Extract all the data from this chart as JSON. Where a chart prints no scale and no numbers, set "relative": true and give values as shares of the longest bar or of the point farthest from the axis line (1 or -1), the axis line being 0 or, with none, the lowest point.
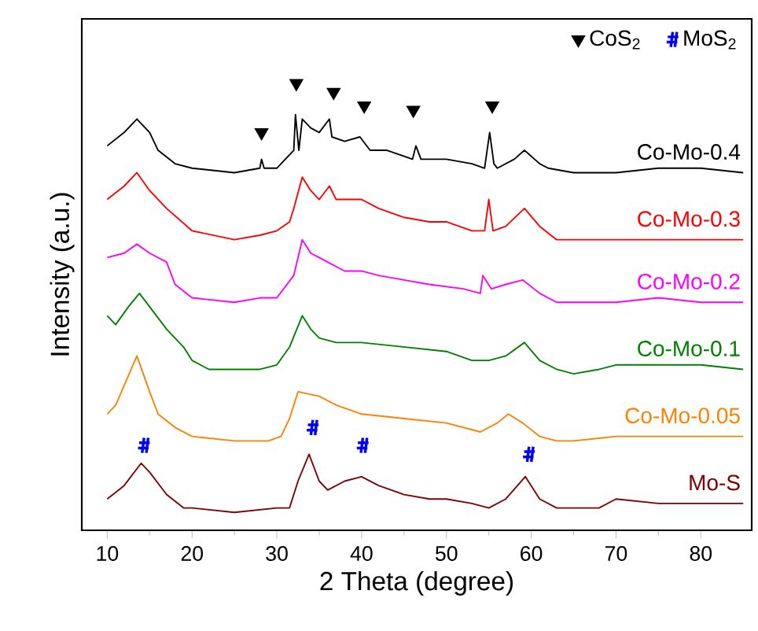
{
  "chart_data": {
    "type": "line",
    "relative": true,
    "xlabel": "2 Theta (degree)",
    "ylabel": "Intensity (a.u.)",
    "xlim": [
      7,
      86
    ],
    "xticks": [
      10,
      20,
      30,
      40,
      50,
      60,
      70,
      80
    ],
    "legend": "top right",
    "series": [
      {
        "name": "Co-Mo-0.4",
        "color": "#000000",
        "x": [
          10,
          12,
          13.5,
          15,
          16,
          18,
          20,
          25,
          28,
          28.2,
          28.5,
          30,
          31,
          32,
          32.2,
          32.6,
          33,
          34,
          35,
          36.2,
          36.5,
          38,
          39.8,
          41,
          43,
          46,
          46.4,
          47,
          50,
          53,
          54.5,
          55.1,
          55.6,
          56,
          58,
          59.2,
          61,
          62,
          65,
          70,
          75,
          80,
          85
        ],
        "values": [
          0.86,
          0.89,
          0.92,
          0.89,
          0.85,
          0.82,
          0.81,
          0.8,
          0.81,
          0.83,
          0.81,
          0.81,
          0.83,
          0.85,
          0.93,
          0.85,
          0.92,
          0.9,
          0.89,
          0.92,
          0.88,
          0.87,
          0.88,
          0.85,
          0.85,
          0.83,
          0.86,
          0.83,
          0.83,
          0.82,
          0.81,
          0.89,
          0.82,
          0.81,
          0.83,
          0.85,
          0.82,
          0.81,
          0.8,
          0.8,
          0.81,
          0.81,
          0.8
        ]
      },
      {
        "name": "Co-Mo-0.3",
        "color": "#ff0000",
        "x": [
          10,
          12,
          13.5,
          15,
          17,
          20,
          25,
          28,
          30,
          31.5,
          32,
          33,
          34,
          35,
          36.2,
          37,
          40,
          42,
          45,
          48,
          50,
          53,
          54.5,
          55,
          55.5,
          57,
          59.2,
          61,
          63,
          65,
          70,
          80,
          85
        ],
        "values": [
          0.74,
          0.77,
          0.8,
          0.76,
          0.72,
          0.67,
          0.65,
          0.66,
          0.67,
          0.69,
          0.72,
          0.79,
          0.76,
          0.74,
          0.77,
          0.74,
          0.74,
          0.72,
          0.7,
          0.69,
          0.69,
          0.67,
          0.67,
          0.74,
          0.67,
          0.68,
          0.72,
          0.68,
          0.65,
          0.65,
          0.65,
          0.65,
          0.65
        ]
      },
      {
        "name": "Co-Mo-0.2",
        "color": "#ff00ff",
        "x": [
          10,
          12,
          13.5,
          15,
          17,
          18,
          20,
          25,
          28,
          30,
          32,
          33,
          34,
          35,
          36,
          38,
          40,
          42,
          45,
          48,
          52,
          54,
          54.3,
          55.3,
          57,
          59,
          61,
          63,
          65,
          70,
          75,
          80,
          85
        ],
        "values": [
          0.61,
          0.62,
          0.64,
          0.62,
          0.6,
          0.55,
          0.52,
          0.51,
          0.52,
          0.52,
          0.57,
          0.65,
          0.62,
          0.61,
          0.6,
          0.58,
          0.58,
          0.57,
          0.56,
          0.55,
          0.54,
          0.53,
          0.57,
          0.54,
          0.55,
          0.56,
          0.53,
          0.51,
          0.51,
          0.51,
          0.52,
          0.51,
          0.51
        ]
      },
      {
        "name": "Co-Mo-0.1",
        "color": "#008000",
        "x": [
          10,
          11,
          12.5,
          13.8,
          15,
          17,
          19,
          20,
          22,
          25,
          28,
          30,
          31.5,
          33,
          34,
          35,
          37,
          40,
          45,
          50,
          53,
          55,
          57,
          59.2,
          61,
          63,
          65,
          68,
          70,
          75,
          80,
          85
        ],
        "values": [
          0.48,
          0.46,
          0.5,
          0.53,
          0.5,
          0.45,
          0.41,
          0.38,
          0.36,
          0.36,
          0.36,
          0.37,
          0.41,
          0.48,
          0.45,
          0.43,
          0.42,
          0.42,
          0.41,
          0.4,
          0.38,
          0.38,
          0.39,
          0.42,
          0.38,
          0.36,
          0.35,
          0.36,
          0.37,
          0.37,
          0.37,
          0.36
        ]
      },
      {
        "name": "Co-Mo-0.05",
        "color": "#ff8000",
        "x": [
          10,
          11,
          13.5,
          15,
          16,
          18,
          20,
          25,
          29,
          30.5,
          31.5,
          32.5,
          35,
          37,
          40,
          45,
          50,
          54,
          56,
          57.3,
          59,
          61,
          63,
          65,
          70,
          75,
          80,
          85
        ],
        "values": [
          0.26,
          0.28,
          0.39,
          0.31,
          0.26,
          0.23,
          0.21,
          0.2,
          0.2,
          0.21,
          0.25,
          0.31,
          0.3,
          0.28,
          0.26,
          0.25,
          0.24,
          0.22,
          0.24,
          0.26,
          0.24,
          0.21,
          0.2,
          0.2,
          0.21,
          0.21,
          0.21,
          0.21
        ]
      },
      {
        "name": "Mo-S",
        "color": "#800000",
        "x": [
          10,
          12,
          14,
          15,
          17,
          19,
          20,
          25,
          30,
          31.5,
          32.5,
          33.8,
          35,
          36,
          38,
          40,
          42,
          45,
          48,
          50,
          53,
          55,
          57,
          59.3,
          61,
          63,
          65,
          68,
          70,
          75,
          80,
          85
        ],
        "values": [
          0.07,
          0.1,
          0.15,
          0.13,
          0.08,
          0.05,
          0.05,
          0.04,
          0.05,
          0.05,
          0.11,
          0.17,
          0.11,
          0.09,
          0.11,
          0.12,
          0.1,
          0.08,
          0.07,
          0.07,
          0.06,
          0.05,
          0.07,
          0.12,
          0.07,
          0.05,
          0.05,
          0.05,
          0.07,
          0.06,
          0.06,
          0.06
        ]
      },
      {
        "name": "CoS$_{2}$",
        "type": "scatter",
        "marker": "triangle",
        "color": "#000000",
        "x": [
          28.2,
          32.3,
          36.7,
          40.3,
          46.1,
          55.4
        ],
        "values": [
          0.89,
          1.0,
          0.98,
          0.95,
          0.94,
          0.95
        ]
      },
      {
        "name": "MoS$_{2}$",
        "type": "scatter",
        "marker": "cross",
        "color": "#0000ff",
        "x": [
          14.3,
          34.2,
          40.1,
          59.7
        ],
        "values": [
          0.19,
          0.23,
          0.19,
          0.17
        ]
      }
    ]
  }
}
